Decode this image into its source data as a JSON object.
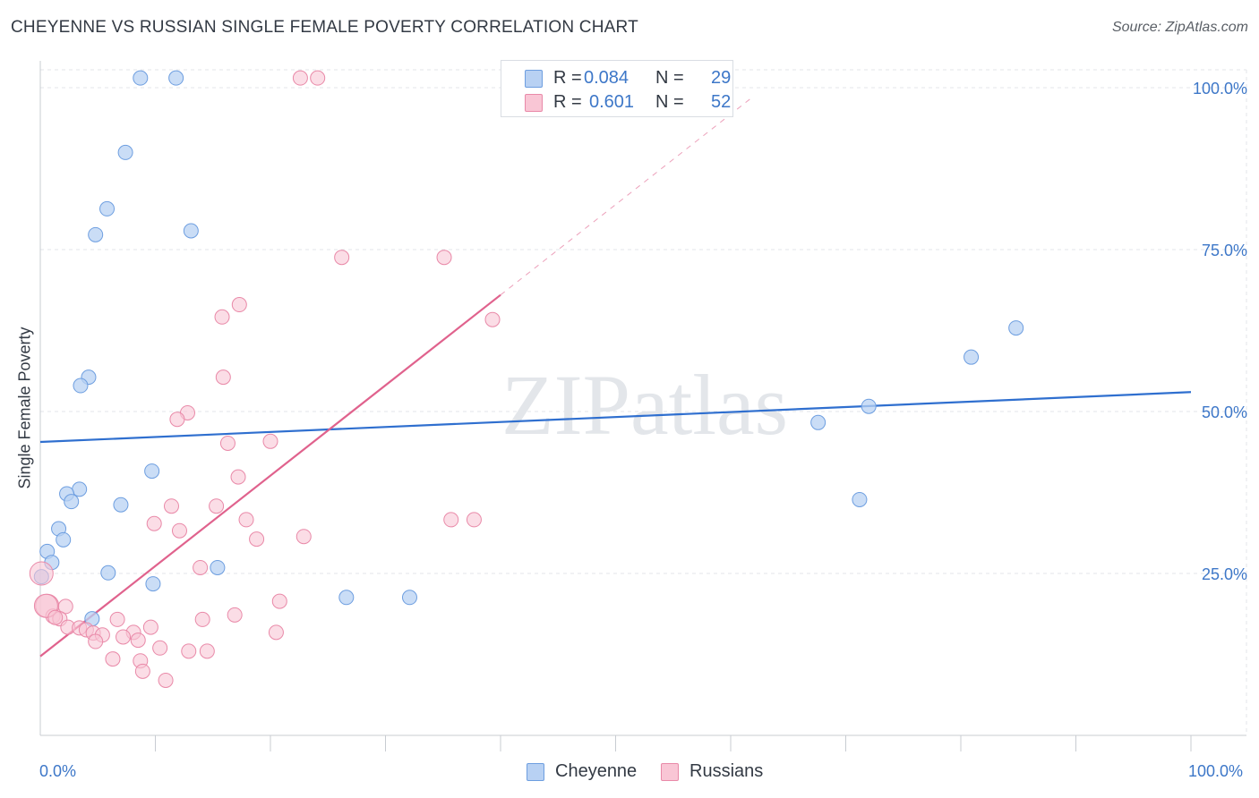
{
  "title": "CHEYENNE VS RUSSIAN SINGLE FEMALE POVERTY CORRELATION CHART",
  "source": "Source: ZipAtlas.com",
  "colors": {
    "cheyenne_fill": "#b8d1f3",
    "cheyenne_stroke": "#6d9ee0",
    "cheyenne_line": "#2f6fcf",
    "russians_fill": "#f9c6d5",
    "russians_stroke": "#e989a8",
    "russians_line": "#e0628d",
    "axis_text": "#3d77c8"
  },
  "legend": {
    "rows": [
      {
        "series": "Cheyenne",
        "r_label": "R =",
        "r_value": "0.084",
        "n_label": "N =",
        "n_value": "29"
      },
      {
        "series": "Russians",
        "r_label": "R =",
        "r_value": "0.601",
        "n_label": "N =",
        "n_value": "52"
      }
    ]
  },
  "chart_data": {
    "type": "scatter",
    "title": "CHEYENNE VS RUSSIAN SINGLE FEMALE POVERTY CORRELATION CHART",
    "xlabel": "",
    "ylabel": "Single Female Poverty",
    "xlim": [
      0,
      100
    ],
    "ylim": [
      0,
      100
    ],
    "x_tick_labels": [
      "0.0%",
      "100.0%"
    ],
    "y_tick_labels": [
      "25.0%",
      "50.0%",
      "75.0%",
      "100.0%"
    ],
    "y_ticks": [
      25,
      50,
      75,
      100
    ],
    "grid": true,
    "watermark": "ZIPatlas",
    "series": [
      {
        "name": "Cheyenne",
        "r": 0.084,
        "n": 29,
        "trend": {
          "x0": 0,
          "y0": 45.3,
          "x1": 100,
          "y1": 53.0,
          "dashed_to": 100
        },
        "points": [
          [
            8.7,
            101.5
          ],
          [
            11.8,
            101.5
          ],
          [
            7.4,
            90.0
          ],
          [
            5.8,
            81.3
          ],
          [
            4.8,
            77.3
          ],
          [
            13.1,
            77.9
          ],
          [
            4.2,
            55.3
          ],
          [
            3.5,
            54.0
          ],
          [
            9.7,
            40.8
          ],
          [
            3.4,
            38.0
          ],
          [
            2.3,
            37.3
          ],
          [
            2.7,
            36.1
          ],
          [
            7.0,
            35.6
          ],
          [
            1.6,
            31.9
          ],
          [
            2.0,
            30.2
          ],
          [
            0.6,
            28.4
          ],
          [
            1.0,
            26.7
          ],
          [
            5.9,
            25.1
          ],
          [
            15.4,
            25.9
          ],
          [
            9.8,
            23.4
          ],
          [
            0.1,
            24.5
          ],
          [
            4.5,
            18.0
          ],
          [
            26.6,
            21.3
          ],
          [
            32.1,
            21.3
          ],
          [
            67.6,
            48.3
          ],
          [
            71.2,
            36.4
          ],
          [
            72.0,
            50.8
          ],
          [
            80.9,
            58.4
          ],
          [
            84.8,
            62.9
          ]
        ]
      },
      {
        "name": "Russians",
        "r": 0.601,
        "n": 52,
        "trend": {
          "x0": 0,
          "y0": 12.2,
          "x1": 40.0,
          "y1": 68.0,
          "dashed_to": 62.0
        },
        "points": [
          [
            22.6,
            101.5
          ],
          [
            24.1,
            101.5
          ],
          [
            26.2,
            73.8
          ],
          [
            35.1,
            73.8
          ],
          [
            17.3,
            66.5
          ],
          [
            15.8,
            64.6
          ],
          [
            39.3,
            64.2
          ],
          [
            15.9,
            55.3
          ],
          [
            12.8,
            49.8
          ],
          [
            11.9,
            48.8
          ],
          [
            16.3,
            45.1
          ],
          [
            20.0,
            45.4
          ],
          [
            17.2,
            39.9
          ],
          [
            11.4,
            35.4
          ],
          [
            15.3,
            35.4
          ],
          [
            17.9,
            33.3
          ],
          [
            35.7,
            33.3
          ],
          [
            37.7,
            33.3
          ],
          [
            9.9,
            32.7
          ],
          [
            12.1,
            31.6
          ],
          [
            18.8,
            30.3
          ],
          [
            22.9,
            30.7
          ],
          [
            13.9,
            25.9
          ],
          [
            0.1,
            25.0
          ],
          [
            20.8,
            20.7
          ],
          [
            0.6,
            20.0
          ],
          [
            2.2,
            19.9
          ],
          [
            1.1,
            18.4
          ],
          [
            1.7,
            18.0
          ],
          [
            16.9,
            18.6
          ],
          [
            14.1,
            17.9
          ],
          [
            6.7,
            17.9
          ],
          [
            2.4,
            16.7
          ],
          [
            3.4,
            16.6
          ],
          [
            4.0,
            16.3
          ],
          [
            4.6,
            15.8
          ],
          [
            5.4,
            15.5
          ],
          [
            8.1,
            15.9
          ],
          [
            9.6,
            16.7
          ],
          [
            7.2,
            15.2
          ],
          [
            8.5,
            14.7
          ],
          [
            4.8,
            14.5
          ],
          [
            20.5,
            15.9
          ],
          [
            10.4,
            13.5
          ],
          [
            12.9,
            13.0
          ],
          [
            14.5,
            13.0
          ],
          [
            6.3,
            11.8
          ],
          [
            8.7,
            11.5
          ],
          [
            8.9,
            9.9
          ],
          [
            10.9,
            8.5
          ],
          [
            0.5,
            20.0
          ],
          [
            1.3,
            18.2
          ]
        ]
      }
    ]
  },
  "bottom_legend": [
    "Cheyenne",
    "Russians"
  ],
  "x_axis": {
    "left_label": "0.0%",
    "right_label": "100.0%"
  }
}
